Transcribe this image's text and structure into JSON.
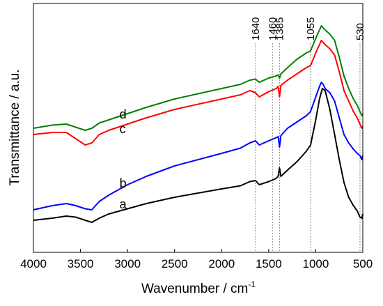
{
  "chart_data": {
    "type": "line",
    "xlabel": "Wavenumber / cm",
    "xlabel_sup": "-1",
    "ylabel": "Transmittance / a.u.",
    "xlim": [
      4000,
      500
    ],
    "x_reversed": true,
    "ylim": [
      0,
      100
    ],
    "x_ticks": [
      "4000",
      "3500",
      "3000",
      "2500",
      "2000",
      "1500",
      "1000",
      "500"
    ],
    "y_ticks_shown": false,
    "grid": false,
    "legend": "none",
    "annotations": [
      {
        "label": "1640",
        "x": 1640
      },
      {
        "label": "1460",
        "x": 1460
      },
      {
        "label": "1385",
        "x": 1385
      },
      {
        "label": "1055",
        "x": 1055
      },
      {
        "label": "530",
        "x": 530
      }
    ],
    "series": [
      {
        "name": "a",
        "color": "#000000",
        "label_x": 3100,
        "label_y": 9,
        "x": [
          4000,
          3800,
          3650,
          3550,
          3450,
          3380,
          3300,
          3200,
          3000,
          2800,
          2500,
          2000,
          1800,
          1700,
          1640,
          1600,
          1500,
          1420,
          1400,
          1385,
          1370,
          1300,
          1200,
          1100,
          1055,
          1000,
          960,
          930,
          900,
          850,
          800,
          750,
          700,
          650,
          600,
          560,
          530,
          510,
          500
        ],
        "y": [
          4,
          5,
          6,
          5.5,
          4,
          3,
          5,
          7,
          9.5,
          12,
          15,
          19,
          20.5,
          22.5,
          23,
          21,
          22.5,
          24,
          25,
          29,
          25,
          28,
          32,
          37,
          40,
          52,
          62,
          67,
          66,
          57,
          45,
          33,
          22,
          15,
          11,
          8.5,
          5.5,
          5,
          7
        ]
      },
      {
        "name": "b",
        "color": "#0000ff",
        "label_x": 3100,
        "label_y": 19,
        "x": [
          4000,
          3800,
          3650,
          3550,
          3450,
          3380,
          3300,
          3200,
          3000,
          2800,
          2500,
          2000,
          1800,
          1700,
          1640,
          1600,
          1500,
          1420,
          1400,
          1385,
          1370,
          1300,
          1200,
          1100,
          1055,
          1000,
          960,
          940,
          920,
          900,
          850,
          800,
          750,
          700,
          650,
          600,
          560,
          530,
          510,
          500
        ],
        "y": [
          9,
          11,
          12,
          11,
          9.5,
          9,
          13,
          16,
          21,
          25,
          30,
          36,
          38.5,
          41,
          42,
          40,
          42,
          43.5,
          44,
          39,
          44.5,
          48,
          51,
          54,
          56,
          63,
          68,
          70,
          69,
          67,
          65,
          61,
          53,
          45,
          41,
          38,
          36,
          35,
          33,
          35
        ]
      },
      {
        "name": "c",
        "color": "#ff0000",
        "label_x": 3100,
        "label_y": 45,
        "x": [
          4000,
          3800,
          3650,
          3550,
          3450,
          3380,
          3300,
          3200,
          3000,
          2800,
          2500,
          2000,
          1800,
          1700,
          1640,
          1600,
          1500,
          1420,
          1400,
          1385,
          1370,
          1300,
          1200,
          1100,
          1055,
          1000,
          960,
          940,
          920,
          900,
          850,
          800,
          750,
          700,
          650,
          600,
          560,
          530,
          510,
          500
        ],
        "y": [
          45,
          46,
          46,
          43,
          40,
          41,
          45,
          47,
          50,
          53,
          57,
          62,
          64,
          66,
          65,
          63,
          65.5,
          67,
          68,
          63,
          68.5,
          71,
          74,
          77,
          78,
          84,
          88,
          90,
          89,
          88,
          86,
          83,
          75,
          66,
          61,
          56,
          53,
          50,
          48,
          49
        ]
      },
      {
        "name": "d",
        "color": "#008000",
        "label_x": 3100,
        "label_y": 52,
        "x": [
          4000,
          3800,
          3650,
          3550,
          3450,
          3380,
          3300,
          3200,
          3000,
          2800,
          2500,
          2000,
          1800,
          1700,
          1640,
          1600,
          1500,
          1420,
          1400,
          1385,
          1370,
          1300,
          1200,
          1100,
          1055,
          1000,
          960,
          940,
          920,
          900,
          850,
          800,
          750,
          700,
          650,
          600,
          560,
          530,
          510,
          500
        ],
        "y": [
          48,
          49.5,
          50,
          48.5,
          47,
          48,
          50.5,
          52,
          55,
          58,
          62,
          67,
          69,
          71,
          71.5,
          70,
          72,
          73,
          73.5,
          72,
          74,
          77,
          81,
          84,
          85,
          91,
          95,
          97,
          96,
          95,
          93,
          90,
          82,
          73,
          67,
          62,
          59,
          56,
          54,
          55
        ]
      }
    ]
  }
}
